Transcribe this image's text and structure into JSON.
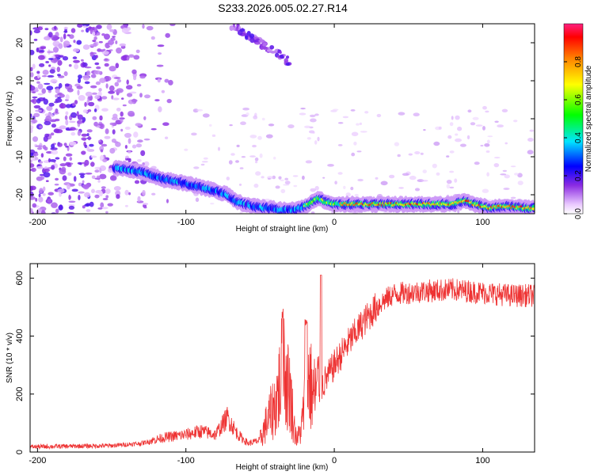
{
  "title": "S233.2026.005.02.27.R14",
  "chart_data": [
    {
      "type": "heatmap",
      "name": "spectrogram",
      "xlabel": "Height of straight line (km)",
      "ylabel": "Frequency (Hz)",
      "xlim": [
        -205,
        135
      ],
      "ylim": [
        -25,
        25
      ],
      "xticks": [
        -200,
        -100,
        0,
        100
      ],
      "yticks": [
        -20,
        -10,
        0,
        10,
        20
      ],
      "ridge": {
        "x": [
          -145,
          -130,
          -115,
          -100,
          -90,
          -80,
          -72,
          -65,
          -55,
          -45,
          -35,
          -28,
          -22,
          -15,
          -10,
          -5,
          0,
          20,
          40,
          60,
          80,
          88,
          95,
          105,
          115,
          130,
          135
        ],
        "y": [
          -13,
          -14,
          -16,
          -17,
          -18,
          -19,
          -20,
          -22,
          -23,
          -23.5,
          -24,
          -24,
          -23.5,
          -22,
          -21,
          -22,
          -22.5,
          -22.5,
          -22.5,
          -22.5,
          -22.5,
          -21.5,
          -22.5,
          -23.5,
          -23,
          -23.5,
          -23.5
        ]
      },
      "colorbar": {
        "label": "Normalized spectral amplitude",
        "ticks": [
          "0.0",
          "0.2",
          "0.4",
          "0.6",
          "0.8"
        ],
        "range": [
          0,
          1
        ]
      }
    },
    {
      "type": "line",
      "name": "snr",
      "xlabel": "Height of straight line (km)",
      "ylabel": "SNR (10 * v/v)",
      "xlim": [
        -205,
        135
      ],
      "ylim": [
        0,
        650
      ],
      "xticks": [
        -200,
        -100,
        0,
        100
      ],
      "yticks": [
        0,
        200,
        400,
        600
      ],
      "color": "#ee3333",
      "envelope": {
        "x": [
          -205,
          -180,
          -150,
          -130,
          -115,
          -100,
          -90,
          -80,
          -72,
          -65,
          -58,
          -50,
          -45,
          -40,
          -35,
          -30,
          -27,
          -25,
          -22,
          -18,
          -14,
          -8,
          0,
          10,
          20,
          30,
          40,
          60,
          80,
          100,
          120,
          135
        ],
        "y": [
          18,
          20,
          22,
          30,
          50,
          60,
          72,
          60,
          120,
          60,
          30,
          40,
          100,
          150,
          250,
          200,
          80,
          40,
          80,
          250,
          180,
          230,
          300,
          380,
          450,
          510,
          545,
          555,
          560,
          550,
          540,
          540
        ]
      }
    }
  ]
}
